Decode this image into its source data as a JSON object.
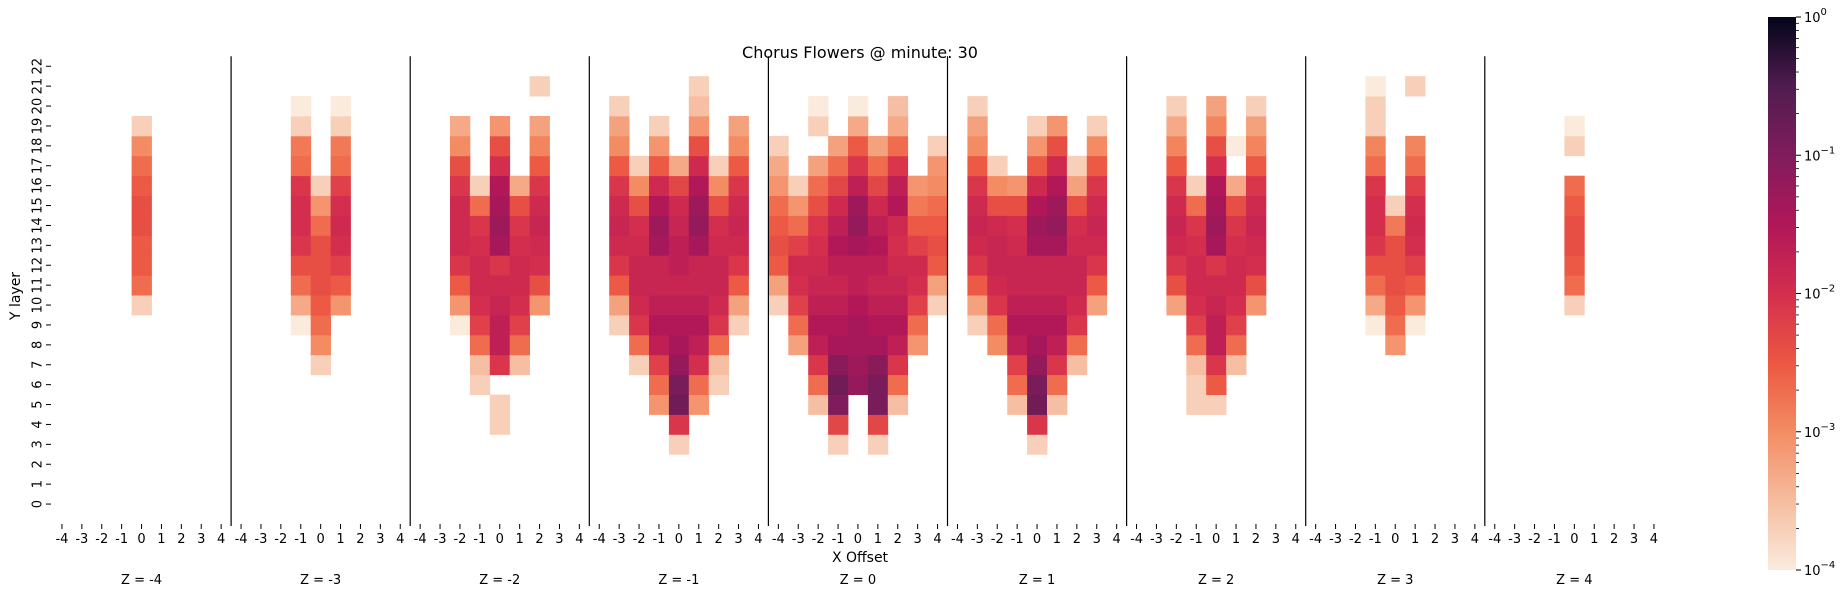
{
  "chart_data": {
    "type": "heatmap",
    "title": "Chorus Flowers @ minute: 30",
    "xlabel": "X Offset",
    "ylabel": "Y layer",
    "x_ticks": [
      "-4",
      "-3",
      "-2",
      "-1",
      "0",
      "1",
      "2",
      "3",
      "4"
    ],
    "y_ticks": [
      "0",
      "1",
      "2",
      "3",
      "4",
      "5",
      "6",
      "7",
      "8",
      "9",
      "10",
      "11",
      "12",
      "13",
      "14",
      "15",
      "16",
      "17",
      "18",
      "19",
      "20",
      "21",
      "22"
    ],
    "colorbar": {
      "scale": "log",
      "vmin": 0.0001,
      "vmax": 1,
      "ticks": [
        {
          "base": "10",
          "exp": "0",
          "value": 1
        },
        {
          "base": "10",
          "exp": "−1",
          "value": 0.1
        },
        {
          "base": "10",
          "exp": "−2",
          "value": 0.01
        },
        {
          "base": "10",
          "exp": "−3",
          "value": 0.001
        },
        {
          "base": "10",
          "exp": "−4",
          "value": 0.0001
        }
      ]
    },
    "panels": [
      {
        "label": "Z = -4",
        "z": -4,
        "columns": [
          {
            "x": 0,
            "values": {
              "10": 0.0002,
              "11": 0.002,
              "12": 0.003,
              "13": 0.003,
              "14": 0.004,
              "15": 0.004,
              "16": 0.003,
              "17": 0.002,
              "18": 0.001,
              "19": 0.0002
            }
          }
        ]
      },
      {
        "label": "Z = -3",
        "z": -3,
        "columns": [
          {
            "x": -1,
            "values": {
              "9": 0.0001,
              "10": 0.0005,
              "11": 0.002,
              "12": 0.004,
              "13": 0.008,
              "14": 0.01,
              "15": 0.01,
              "16": 0.008,
              "17": 0.002,
              "18": 0.0015,
              "19": 0.0002,
              "20": 0.0001
            }
          },
          {
            "x": 0,
            "values": {
              "7": 0.0002,
              "8": 0.001,
              "9": 0.002,
              "10": 0.003,
              "11": 0.004,
              "12": 0.004,
              "13": 0.004,
              "14": 0.002,
              "15": 0.0008,
              "16": 0.0002
            }
          },
          {
            "x": 1,
            "values": {
              "10": 0.0008,
              "11": 0.003,
              "12": 0.006,
              "13": 0.01,
              "14": 0.012,
              "15": 0.01,
              "16": 0.006,
              "17": 0.002,
              "18": 0.0015,
              "19": 0.0002,
              "20": 0.0001
            }
          }
        ]
      },
      {
        "label": "Z = -2",
        "z": -2,
        "columns": [
          {
            "x": -2,
            "values": {
              "9": 0.0001,
              "10": 0.0008,
              "11": 0.003,
              "12": 0.008,
              "13": 0.012,
              "14": 0.012,
              "15": 0.012,
              "16": 0.008,
              "17": 0.004,
              "18": 0.001,
              "19": 0.0005
            }
          },
          {
            "x": -1,
            "values": {
              "6": 0.0002,
              "7": 0.0003,
              "8": 0.002,
              "9": 0.006,
              "10": 0.01,
              "11": 0.012,
              "12": 0.012,
              "13": 0.01,
              "14": 0.008,
              "15": 0.002,
              "16": 0.0002
            }
          },
          {
            "x": 0,
            "values": {
              "4": 0.0002,
              "5": 0.0002,
              "7": 0.008,
              "8": 0.02,
              "9": 0.02,
              "10": 0.015,
              "11": 0.012,
              "12": 0.008,
              "13": 0.04,
              "14": 0.05,
              "15": 0.04,
              "16": 0.03,
              "17": 0.01,
              "18": 0.004,
              "19": 0.0008
            }
          },
          {
            "x": 1,
            "values": {
              "7": 0.0003,
              "8": 0.002,
              "9": 0.006,
              "10": 0.01,
              "11": 0.012,
              "12": 0.012,
              "13": 0.01,
              "14": 0.008,
              "15": 0.004,
              "16": 0.0005
            }
          },
          {
            "x": 2,
            "values": {
              "10": 0.0008,
              "11": 0.004,
              "12": 0.01,
              "13": 0.012,
              "14": 0.015,
              "15": 0.012,
              "16": 0.008,
              "17": 0.003,
              "18": 0.0012,
              "19": 0.0006,
              "21": 0.0002
            }
          }
        ]
      },
      {
        "label": "Z = -1",
        "z": -1,
        "columns": [
          {
            "x": -3,
            "values": {
              "9": 0.0002,
              "10": 0.0006,
              "11": 0.003,
              "12": 0.008,
              "13": 0.012,
              "14": 0.015,
              "15": 0.012,
              "16": 0.008,
              "17": 0.003,
              "18": 0.001,
              "19": 0.0006,
              "20": 0.0002
            }
          },
          {
            "x": -2,
            "values": {
              "7": 0.0002,
              "8": 0.002,
              "9": 0.008,
              "10": 0.012,
              "11": 0.015,
              "12": 0.015,
              "13": 0.012,
              "14": 0.01,
              "15": 0.004,
              "16": 0.001,
              "17": 0.0002
            }
          },
          {
            "x": -1,
            "values": {
              "5": 0.0008,
              "6": 0.002,
              "7": 0.006,
              "8": 0.02,
              "9": 0.03,
              "10": 0.02,
              "11": 0.015,
              "12": 0.015,
              "13": 0.04,
              "14": 0.05,
              "15": 0.03,
              "16": 0.012,
              "17": 0.003,
              "18": 0.0008,
              "19": 0.0002
            }
          },
          {
            "x": 0,
            "values": {
              "3": 0.0002,
              "4": 0.008,
              "5": 0.15,
              "6": 0.12,
              "7": 0.06,
              "8": 0.04,
              "9": 0.03,
              "10": 0.02,
              "11": 0.015,
              "12": 0.02,
              "13": 0.02,
              "14": 0.015,
              "15": 0.012,
              "16": 0.005,
              "17": 0.0005
            }
          },
          {
            "x": 1,
            "values": {
              "5": 0.0008,
              "6": 0.002,
              "7": 0.01,
              "8": 0.02,
              "9": 0.03,
              "10": 0.02,
              "11": 0.015,
              "12": 0.015,
              "13": 0.04,
              "14": 0.06,
              "15": 0.05,
              "16": 0.03,
              "17": 0.012,
              "18": 0.004,
              "19": 0.0008,
              "20": 0.0003,
              "21": 0.0002
            }
          },
          {
            "x": 2,
            "values": {
              "6": 0.0002,
              "7": 0.0003,
              "8": 0.002,
              "9": 0.008,
              "10": 0.012,
              "11": 0.015,
              "12": 0.015,
              "13": 0.012,
              "14": 0.01,
              "15": 0.004,
              "16": 0.001,
              "17": 0.0002
            }
          },
          {
            "x": 3,
            "values": {
              "9": 0.0002,
              "10": 0.0006,
              "11": 0.003,
              "12": 0.008,
              "13": 0.012,
              "14": 0.015,
              "15": 0.012,
              "16": 0.008,
              "17": 0.003,
              "18": 0.001,
              "19": 0.0006
            }
          }
        ]
      },
      {
        "label": "Z = 0",
        "z": 0,
        "columns": [
          {
            "x": -4,
            "values": {
              "10": 0.0002,
              "11": 0.0006,
              "12": 0.003,
              "13": 0.004,
              "14": 0.003,
              "15": 0.002,
              "16": 0.0008,
              "17": 0.0005,
              "18": 0.0002
            }
          },
          {
            "x": -3,
            "values": {
              "8": 0.0006,
              "9": 0.002,
              "10": 0.006,
              "11": 0.01,
              "12": 0.012,
              "13": 0.006,
              "14": 0.002,
              "15": 0.0008,
              "16": 0.0002
            }
          },
          {
            "x": -2,
            "values": {
              "5": 0.0003,
              "6": 0.002,
              "7": 0.008,
              "8": 0.02,
              "9": 0.03,
              "10": 0.02,
              "11": 0.015,
              "12": 0.012,
              "13": 0.01,
              "14": 0.008,
              "15": 0.004,
              "16": 0.002,
              "17": 0.0006,
              "19": 0.0002,
              "20": 0.0001
            }
          },
          {
            "x": -1,
            "values": {
              "3": 0.0002,
              "4": 0.005,
              "5": 0.1,
              "6": 0.15,
              "7": 0.08,
              "8": 0.04,
              "9": 0.03,
              "10": 0.02,
              "11": 0.015,
              "12": 0.02,
              "13": 0.03,
              "14": 0.02,
              "15": 0.012,
              "16": 0.005,
              "17": 0.002,
              "18": 0.0006
            }
          },
          {
            "x": 0,
            "values": {
              "6": 0.06,
              "7": 0.05,
              "8": 0.04,
              "9": 0.04,
              "10": 0.03,
              "11": 0.02,
              "12": 0.02,
              "13": 0.04,
              "14": 0.06,
              "15": 0.05,
              "16": 0.02,
              "17": 0.008,
              "18": 0.003,
              "19": 0.0005,
              "20": 0.0001
            }
          },
          {
            "x": 1,
            "values": {
              "3": 0.0002,
              "4": 0.005,
              "5": 0.12,
              "6": 0.12,
              "7": 0.08,
              "8": 0.04,
              "9": 0.03,
              "10": 0.02,
              "11": 0.015,
              "12": 0.02,
              "13": 0.03,
              "14": 0.02,
              "15": 0.012,
              "16": 0.005,
              "17": 0.002,
              "18": 0.0006
            }
          },
          {
            "x": 2,
            "values": {
              "5": 0.0003,
              "6": 0.002,
              "7": 0.008,
              "8": 0.02,
              "9": 0.03,
              "10": 0.02,
              "11": 0.015,
              "12": 0.012,
              "13": 0.01,
              "14": 0.012,
              "15": 0.03,
              "16": 0.02,
              "17": 0.008,
              "18": 0.002,
              "19": 0.0005,
              "20": 0.0003
            }
          },
          {
            "x": 3,
            "values": {
              "8": 0.0008,
              "9": 0.002,
              "10": 0.006,
              "11": 0.01,
              "12": 0.012,
              "13": 0.006,
              "14": 0.003,
              "15": 0.0015,
              "16": 0.0008
            }
          },
          {
            "x": 4,
            "values": {
              "10": 0.0002,
              "11": 0.0006,
              "12": 0.003,
              "13": 0.004,
              "14": 0.003,
              "15": 0.002,
              "16": 0.001,
              "17": 0.0008,
              "18": 0.0002
            }
          }
        ]
      },
      {
        "label": "Z = 1",
        "z": 1,
        "columns": [
          {
            "x": -3,
            "values": {
              "9": 0.0002,
              "10": 0.0006,
              "11": 0.003,
              "12": 0.008,
              "13": 0.012,
              "14": 0.015,
              "15": 0.012,
              "16": 0.008,
              "17": 0.003,
              "18": 0.001,
              "19": 0.0006,
              "20": 0.0002
            }
          },
          {
            "x": -2,
            "values": {
              "8": 0.001,
              "9": 0.002,
              "10": 0.008,
              "11": 0.012,
              "12": 0.015,
              "13": 0.015,
              "14": 0.012,
              "15": 0.004,
              "16": 0.001,
              "17": 0.0002
            }
          },
          {
            "x": -1,
            "values": {
              "5": 0.0003,
              "6": 0.002,
              "7": 0.006,
              "8": 0.02,
              "9": 0.03,
              "10": 0.02,
              "11": 0.015,
              "12": 0.015,
              "13": 0.012,
              "14": 0.01,
              "15": 0.004,
              "16": 0.0008
            }
          },
          {
            "x": 0,
            "values": {
              "3": 0.0002,
              "4": 0.008,
              "5": 0.15,
              "6": 0.12,
              "7": 0.06,
              "8": 0.04,
              "9": 0.03,
              "10": 0.02,
              "11": 0.015,
              "12": 0.015,
              "13": 0.04,
              "14": 0.05,
              "15": 0.03,
              "16": 0.012,
              "17": 0.003,
              "18": 0.0008,
              "19": 0.0002
            }
          },
          {
            "x": 1,
            "values": {
              "5": 0.0003,
              "6": 0.002,
              "7": 0.008,
              "8": 0.02,
              "9": 0.03,
              "10": 0.02,
              "11": 0.015,
              "12": 0.015,
              "13": 0.04,
              "14": 0.06,
              "15": 0.05,
              "16": 0.03,
              "17": 0.012,
              "18": 0.004,
              "19": 0.0008
            }
          },
          {
            "x": 2,
            "values": {
              "7": 0.0003,
              "8": 0.002,
              "9": 0.008,
              "10": 0.012,
              "11": 0.015,
              "12": 0.015,
              "13": 0.012,
              "14": 0.01,
              "15": 0.004,
              "16": 0.0006,
              "17": 0.0002
            }
          },
          {
            "x": 3,
            "values": {
              "10": 0.0006,
              "11": 0.003,
              "12": 0.008,
              "13": 0.012,
              "14": 0.015,
              "15": 0.012,
              "16": 0.008,
              "17": 0.003,
              "18": 0.001,
              "19": 0.0002
            }
          }
        ]
      },
      {
        "label": "Z = 2",
        "z": 2,
        "columns": [
          {
            "x": -2,
            "values": {
              "10": 0.0006,
              "11": 0.004,
              "12": 0.008,
              "13": 0.012,
              "14": 0.015,
              "15": 0.012,
              "16": 0.008,
              "17": 0.003,
              "18": 0.0012,
              "19": 0.0005,
              "20": 0.0002
            }
          },
          {
            "x": -1,
            "values": {
              "5": 0.0002,
              "6": 0.0002,
              "7": 0.0003,
              "8": 0.002,
              "9": 0.006,
              "10": 0.01,
              "11": 0.012,
              "12": 0.012,
              "13": 0.01,
              "14": 0.008,
              "15": 0.002,
              "16": 0.0002
            }
          },
          {
            "x": 0,
            "values": {
              "5": 0.0002,
              "6": 0.003,
              "7": 0.008,
              "8": 0.02,
              "9": 0.02,
              "10": 0.015,
              "11": 0.012,
              "12": 0.008,
              "13": 0.04,
              "14": 0.05,
              "15": 0.04,
              "16": 0.03,
              "17": 0.01,
              "18": 0.004,
              "19": 0.0012,
              "20": 0.0006
            }
          },
          {
            "x": 1,
            "values": {
              "7": 0.0003,
              "8": 0.002,
              "9": 0.006,
              "10": 0.01,
              "11": 0.012,
              "12": 0.012,
              "13": 0.01,
              "14": 0.008,
              "15": 0.004,
              "16": 0.0005,
              "18": 0.0001
            }
          },
          {
            "x": 2,
            "values": {
              "10": 0.0008,
              "11": 0.004,
              "12": 0.01,
              "13": 0.012,
              "14": 0.015,
              "15": 0.012,
              "16": 0.008,
              "17": 0.003,
              "18": 0.0012,
              "19": 0.0006,
              "20": 0.0002
            }
          }
        ]
      },
      {
        "label": "Z = 3",
        "z": 3,
        "columns": [
          {
            "x": -1,
            "values": {
              "9": 0.0001,
              "10": 0.0005,
              "11": 0.002,
              "12": 0.004,
              "13": 0.008,
              "14": 0.01,
              "15": 0.01,
              "16": 0.008,
              "17": 0.002,
              "18": 0.0012,
              "19": 0.0002,
              "20": 0.0002,
              "21": 0.0001
            }
          },
          {
            "x": 0,
            "values": {
              "8": 0.0008,
              "9": 0.002,
              "10": 0.003,
              "11": 0.004,
              "12": 0.004,
              "13": 0.004,
              "14": 0.0015,
              "15": 0.0002
            }
          },
          {
            "x": 1,
            "values": {
              "9": 0.0001,
              "10": 0.0008,
              "11": 0.003,
              "12": 0.006,
              "13": 0.01,
              "14": 0.012,
              "15": 0.01,
              "16": 0.006,
              "17": 0.002,
              "18": 0.0012,
              "21": 0.0002
            }
          }
        ]
      },
      {
        "label": "Z = 4",
        "z": 4,
        "columns": [
          {
            "x": 0,
            "values": {
              "10": 0.0002,
              "11": 0.002,
              "12": 0.003,
              "13": 0.004,
              "14": 0.004,
              "15": 0.003,
              "16": 0.002,
              "18": 0.0002,
              "19": 0.0001
            }
          }
        ]
      }
    ]
  }
}
